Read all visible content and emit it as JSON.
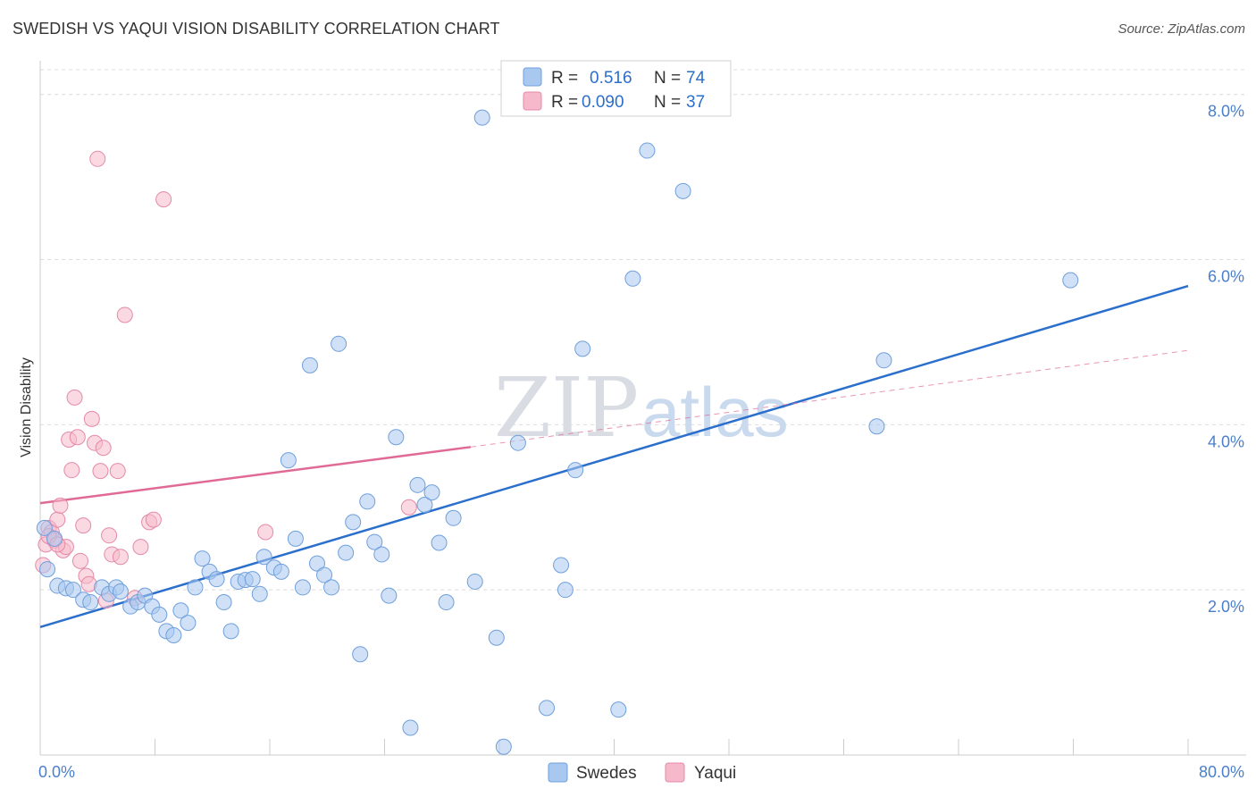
{
  "header": {
    "title": "SWEDISH VS YAQUI VISION DISABILITY CORRELATION CHART",
    "source": "Source: ZipAtlas.com"
  },
  "watermark": {
    "zip": "ZIP",
    "atlas": "atlas"
  },
  "colors": {
    "swedes_fill": "#a9c8f0",
    "swedes_stroke": "#6f9fdb",
    "swedes_line": "#2b6fcc",
    "yaqui_fill": "#f6b9cb",
    "yaqui_stroke": "#e58aa8",
    "yaqui_line": "#e06a95",
    "tick_label": "#4a7fcc",
    "grid": "#dcdcdc"
  },
  "legend": {
    "rows": [
      {
        "r_label": "R = ",
        "r_value": "0.516",
        "n_label": "N = ",
        "n_value": "74"
      },
      {
        "r_label": "R = ",
        "r_value": "0.090",
        "n_label": "N = ",
        "n_value": "37"
      }
    ]
  },
  "chart_data": {
    "type": "scatter",
    "title": "SWEDISH VS YAQUI VISION DISABILITY CORRELATION CHART",
    "xlabel": "",
    "ylabel": "Vision Disability",
    "xlim": [
      0,
      80
    ],
    "ylim": [
      0,
      8.3
    ],
    "x_ticks": [
      0,
      8,
      16,
      24,
      32,
      40,
      48,
      56,
      64,
      72,
      80
    ],
    "x_tick_labels": {
      "0": "0.0%",
      "80": "80.0%"
    },
    "y_ticks": [
      2,
      4,
      6,
      8
    ],
    "y_tick_labels": [
      "2.0%",
      "4.0%",
      "6.0%",
      "8.0%"
    ],
    "grid": true,
    "legend_position": "top-center",
    "series": [
      {
        "name": "Swedes",
        "r": 0.516,
        "n": 74,
        "trend": {
          "x": [
            0,
            80
          ],
          "y": [
            1.55,
            5.68
          ],
          "style": "solid"
        },
        "points": [
          [
            0.5,
            2.25
          ],
          [
            1.2,
            2.05
          ],
          [
            1.8,
            2.02
          ],
          [
            2.3,
            2.0
          ],
          [
            3.0,
            1.88
          ],
          [
            3.5,
            1.85
          ],
          [
            4.3,
            2.03
          ],
          [
            4.8,
            1.95
          ],
          [
            5.3,
            2.03
          ],
          [
            5.6,
            1.98
          ],
          [
            6.3,
            1.8
          ],
          [
            6.8,
            1.85
          ],
          [
            7.3,
            1.93
          ],
          [
            7.8,
            1.8
          ],
          [
            8.3,
            1.7
          ],
          [
            8.8,
            1.5
          ],
          [
            9.3,
            1.45
          ],
          [
            9.8,
            1.75
          ],
          [
            10.3,
            1.6
          ],
          [
            10.8,
            2.03
          ],
          [
            11.3,
            2.38
          ],
          [
            11.8,
            2.22
          ],
          [
            12.3,
            2.13
          ],
          [
            12.8,
            1.85
          ],
          [
            13.3,
            1.5
          ],
          [
            13.8,
            2.1
          ],
          [
            14.3,
            2.12
          ],
          [
            14.8,
            2.13
          ],
          [
            15.3,
            1.95
          ],
          [
            15.6,
            2.4
          ],
          [
            16.3,
            2.27
          ],
          [
            16.8,
            2.22
          ],
          [
            17.3,
            3.57
          ],
          [
            17.8,
            2.62
          ],
          [
            18.3,
            2.03
          ],
          [
            18.8,
            4.72
          ],
          [
            19.3,
            2.32
          ],
          [
            19.8,
            2.18
          ],
          [
            20.3,
            2.03
          ],
          [
            20.8,
            4.98
          ],
          [
            21.3,
            2.45
          ],
          [
            21.8,
            2.82
          ],
          [
            22.3,
            1.22
          ],
          [
            22.8,
            3.07
          ],
          [
            23.3,
            2.58
          ],
          [
            23.8,
            2.43
          ],
          [
            24.3,
            1.93
          ],
          [
            24.8,
            3.85
          ],
          [
            25.8,
            0.33
          ],
          [
            26.3,
            3.27
          ],
          [
            26.8,
            3.03
          ],
          [
            27.3,
            3.18
          ],
          [
            27.8,
            2.57
          ],
          [
            28.3,
            1.85
          ],
          [
            28.8,
            2.87
          ],
          [
            30.3,
            2.1
          ],
          [
            30.8,
            7.72
          ],
          [
            31.8,
            1.42
          ],
          [
            32.3,
            0.1
          ],
          [
            33.3,
            3.78
          ],
          [
            35.3,
            0.57
          ],
          [
            36.3,
            2.3
          ],
          [
            36.6,
            2.0
          ],
          [
            37.3,
            3.45
          ],
          [
            37.8,
            4.92
          ],
          [
            40.3,
            0.55
          ],
          [
            41.3,
            5.77
          ],
          [
            42.3,
            7.32
          ],
          [
            44.8,
            6.83
          ],
          [
            58.3,
            3.98
          ],
          [
            58.8,
            4.78
          ],
          [
            71.8,
            5.75
          ],
          [
            0.3,
            2.75
          ],
          [
            1.0,
            2.62
          ]
        ]
      },
      {
        "name": "Yaqui",
        "r": 0.09,
        "n": 37,
        "trend": {
          "x": [
            0,
            30
          ],
          "y": [
            3.05,
            3.73
          ],
          "style": "solid",
          "extended": {
            "x": [
              30,
              80
            ],
            "y": [
              3.73,
              4.9
            ],
            "style": "dashed"
          }
        },
        "points": [
          [
            0.2,
            2.3
          ],
          [
            0.4,
            2.55
          ],
          [
            0.6,
            2.75
          ],
          [
            0.8,
            2.7
          ],
          [
            1.0,
            2.6
          ],
          [
            1.2,
            2.85
          ],
          [
            1.4,
            3.02
          ],
          [
            1.6,
            2.48
          ],
          [
            1.8,
            2.52
          ],
          [
            2.0,
            3.82
          ],
          [
            2.2,
            3.45
          ],
          [
            2.4,
            4.33
          ],
          [
            2.6,
            3.85
          ],
          [
            2.8,
            2.35
          ],
          [
            3.0,
            2.78
          ],
          [
            3.2,
            2.17
          ],
          [
            3.4,
            2.07
          ],
          [
            3.6,
            4.07
          ],
          [
            3.8,
            3.78
          ],
          [
            4.0,
            7.22
          ],
          [
            4.2,
            3.44
          ],
          [
            4.4,
            3.72
          ],
          [
            4.6,
            1.87
          ],
          [
            4.8,
            2.66
          ],
          [
            5.0,
            2.43
          ],
          [
            5.4,
            3.44
          ],
          [
            5.6,
            2.4
          ],
          [
            5.9,
            5.33
          ],
          [
            6.6,
            1.9
          ],
          [
            7.0,
            2.52
          ],
          [
            7.6,
            2.82
          ],
          [
            7.9,
            2.85
          ],
          [
            8.6,
            6.73
          ],
          [
            15.7,
            2.7
          ],
          [
            25.7,
            3.0
          ],
          [
            0.6,
            2.65
          ],
          [
            1.2,
            2.55
          ]
        ]
      }
    ]
  }
}
